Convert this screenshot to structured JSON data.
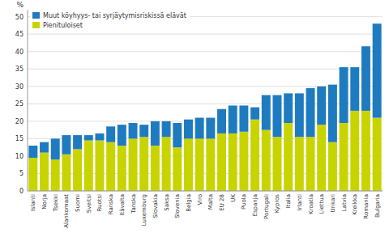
{
  "chart_data": {
    "type": "bar",
    "stacked": true,
    "y_label": "%",
    "categories": [
      "Islanti",
      "Norja",
      "Tsekki",
      "Alankomaat",
      "Suomi",
      "Sveitsi",
      "Ruotsi",
      "Ranska",
      "Itävalta",
      "Tanska",
      "Luxemburg",
      "Slovakia",
      "Saksa",
      "Slovenia",
      "Belgia",
      "Viro",
      "Malta",
      "EU 28",
      "UK",
      "Puola",
      "Espanja",
      "Portugali",
      "Kypros",
      "Italia",
      "Irlanti",
      "Kroatia",
      "Liettua",
      "Unkari",
      "Latvia",
      "Kreikka",
      "Romania",
      "Bulgaria"
    ],
    "series": [
      {
        "name": "Pienituloiset",
        "color": "#c8d400",
        "values": [
          9.5,
          11.0,
          9.0,
          10.5,
          12.0,
          14.5,
          14.5,
          14.0,
          13.0,
          15.0,
          15.5,
          13.0,
          15.5,
          12.5,
          15.0,
          15.0,
          15.0,
          16.5,
          16.5,
          17.0,
          20.5,
          17.5,
          15.5,
          19.5,
          15.5,
          15.5,
          19.0,
          14.0,
          19.5,
          23.0,
          23.0,
          21.0
        ]
      },
      {
        "name": "Muut köyhyys- tai syrjäytymisriskissä elävät",
        "color": "#1f7bbf",
        "values": [
          3.5,
          3.0,
          6.0,
          5.5,
          4.0,
          1.5,
          2.0,
          4.5,
          6.0,
          4.5,
          3.5,
          7.0,
          4.5,
          7.0,
          5.5,
          6.0,
          6.0,
          7.0,
          8.0,
          7.5,
          3.5,
          10.0,
          12.0,
          8.5,
          12.5,
          14.0,
          11.0,
          16.5,
          16.0,
          12.5,
          18.5,
          27.0
        ]
      }
    ],
    "ylim": [
      0,
      52
    ],
    "yticks": [
      0,
      5,
      10,
      15,
      20,
      25,
      30,
      35,
      40,
      45,
      50
    ],
    "grid": true,
    "legend": "upper left"
  }
}
